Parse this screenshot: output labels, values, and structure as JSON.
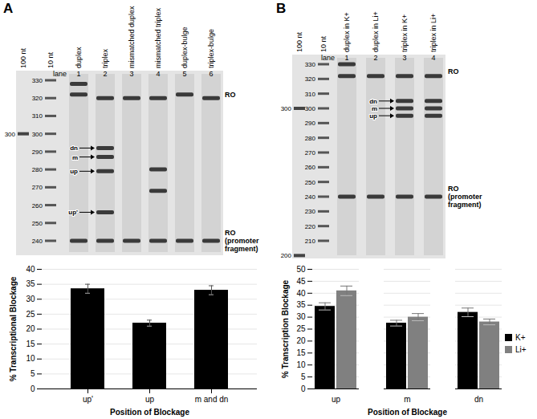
{
  "chart_data": [
    {
      "type": "bar",
      "panel": "A",
      "x_label": "Position of Blockage",
      "y_label": "% Transcriptional Blockage",
      "categories": [
        "up'",
        "up",
        "m and dn"
      ],
      "values": [
        33.5,
        22,
        33
      ],
      "errors": [
        1.5,
        1,
        1.5
      ],
      "color": "#000000",
      "ylim": [
        0,
        40
      ],
      "yticks": [
        0,
        5,
        10,
        15,
        20,
        25,
        30,
        35,
        40
      ],
      "grid": true
    },
    {
      "type": "bar",
      "panel": "B",
      "x_label": "Position of Blockage",
      "y_label": "% Transcription Blockage",
      "categories": [
        "up",
        "m",
        "dn"
      ],
      "series": [
        {
          "name": "K+",
          "color": "#000000",
          "values": [
            34.5,
            27.5,
            32
          ],
          "errors": [
            1.5,
            1.2,
            1.8
          ]
        },
        {
          "name": "Li+",
          "color": "#808080",
          "values": [
            41,
            30,
            28
          ],
          "errors": [
            2,
            1.5,
            1.2
          ]
        }
      ],
      "ylim": [
        0,
        50
      ],
      "yticks": [
        0,
        5,
        10,
        15,
        20,
        25,
        30,
        35,
        40,
        45,
        50
      ],
      "grid": true,
      "legend": "right"
    }
  ],
  "gels": [
    {
      "panel": "A",
      "lane_word": "lane",
      "ladder_100nt": {
        "label": "100 nt",
        "marks": [
          300
        ]
      },
      "ladder_10nt": {
        "label": "10 nt",
        "sizes": [
          330,
          320,
          310,
          300,
          290,
          280,
          270,
          260,
          250,
          240
        ]
      },
      "lanes": [
        {
          "number": 1,
          "title": "duplex",
          "bands": [
            328,
            322,
            240
          ]
        },
        {
          "number": 2,
          "title": "triplex",
          "bands": [
            320,
            292,
            287,
            279,
            256,
            240
          ]
        },
        {
          "number": 3,
          "title": "mismatched duplex",
          "bands": [
            320,
            240
          ]
        },
        {
          "number": 4,
          "title": "mismatched triplex",
          "bands": [
            320,
            280,
            268,
            240
          ]
        },
        {
          "number": 5,
          "title": "duplex-bulge",
          "bands": [
            322,
            240
          ]
        },
        {
          "number": 6,
          "title": "triplex-bulge",
          "bands": [
            320,
            240
          ]
        }
      ],
      "arrows": [
        {
          "label": "dn",
          "size": 292
        },
        {
          "label": "m",
          "size": 287
        },
        {
          "label": "up",
          "size": 279
        },
        {
          "label": "up'",
          "size": 256
        }
      ],
      "side_labels": [
        {
          "label": "RO",
          "size": 322
        },
        {
          "label": "RO (promoter fragment)",
          "size": 240
        }
      ]
    },
    {
      "panel": "B",
      "lane_word": "lane",
      "ladder_100nt": {
        "label": "100 nt",
        "marks": [
          300,
          200
        ]
      },
      "ladder_10nt": {
        "label": "10 nt",
        "sizes": [
          330,
          320,
          310,
          300,
          290,
          280,
          270,
          260,
          250,
          240,
          230,
          220,
          210
        ]
      },
      "lanes": [
        {
          "number": 1,
          "title": "duplex in K+",
          "bands": [
            330,
            322,
            240
          ]
        },
        {
          "number": 2,
          "title": "duplex in Li+",
          "bands": [
            322,
            240
          ]
        },
        {
          "number": 3,
          "title": "triplex in K+",
          "bands": [
            322,
            305,
            300,
            295,
            240
          ]
        },
        {
          "number": 4,
          "title": "triplex in Li+",
          "bands": [
            322,
            305,
            300,
            295,
            240
          ]
        }
      ],
      "arrows": [
        {
          "label": "dn",
          "size": 305
        },
        {
          "label": "m",
          "size": 300
        },
        {
          "label": "up",
          "size": 295
        }
      ],
      "side_labels": [
        {
          "label": "RO",
          "size": 325
        },
        {
          "label": "RO (promoter fragment)",
          "size": 240
        }
      ]
    }
  ]
}
